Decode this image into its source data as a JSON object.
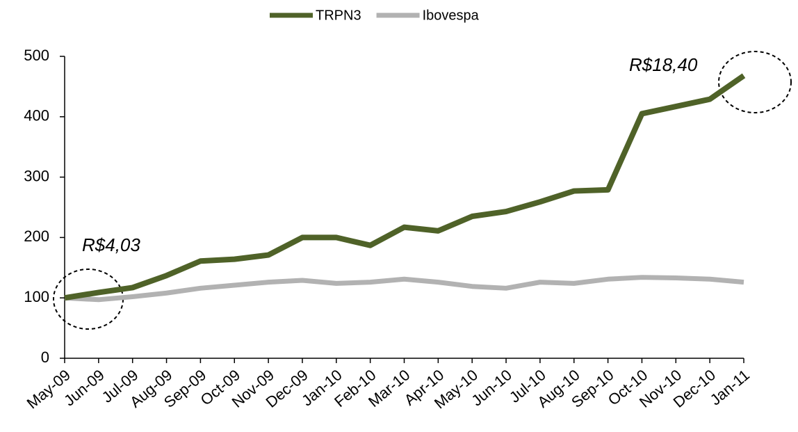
{
  "chart_data": {
    "type": "line",
    "categories": [
      "May-09",
      "Jun-09",
      "Jul-09",
      "Aug-09",
      "Sep-09",
      "Oct-09",
      "Nov-09",
      "Dec-09",
      "Jan-10",
      "Feb-10",
      "Mar-10",
      "Apr-10",
      "May-10",
      "Jun-10",
      "Jul-10",
      "Aug-10",
      "Sep-10",
      "Oct-10",
      "Nov-10",
      "Dec-10",
      "Jan-11"
    ],
    "series": [
      {
        "name": "TRPN3",
        "color": "#4f6228",
        "values": [
          100,
          109,
          117,
          137,
          161,
          164,
          171,
          200,
          200,
          187,
          217,
          211,
          235,
          243,
          259,
          277,
          279,
          405,
          417,
          429,
          468
        ]
      },
      {
        "name": "Ibovespa",
        "color": "#b2b2b2",
        "values": [
          100,
          97,
          102,
          108,
          116,
          121,
          126,
          129,
          124,
          126,
          131,
          126,
          119,
          116,
          126,
          124,
          131,
          134,
          133,
          131,
          126
        ]
      }
    ],
    "ylim": [
      0,
      500
    ],
    "yticks": [
      0,
      100,
      200,
      300,
      400,
      500
    ],
    "annotations": [
      "R$4,03",
      "R$18,40"
    ],
    "legend": "top"
  }
}
